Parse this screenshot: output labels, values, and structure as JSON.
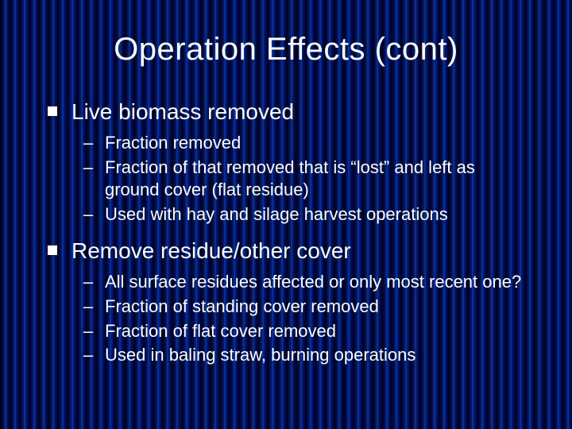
{
  "slide": {
    "title": "Operation Effects (cont)",
    "title_fontsize": 40,
    "title_color": "#ffffff",
    "body_color": "#ffffff",
    "background_stripe_colors": [
      "#000020",
      "#000840",
      "#001860",
      "#0030a0"
    ],
    "bullets": [
      {
        "text": "Live biomass removed",
        "subs": [
          "Fraction removed",
          "Fraction of that removed that is “lost” and left as ground cover (flat residue)",
          "Used with hay and silage harvest operations"
        ]
      },
      {
        "text": "Remove residue/other cover",
        "subs": [
          "All surface residues affected or only most recent one?",
          "Fraction of standing cover removed",
          "Fraction of flat cover removed",
          "Used in baling straw, burning operations"
        ]
      }
    ],
    "top_fontsize": 28,
    "sub_fontsize": 22,
    "top_bullet_shape": "square",
    "sub_bullet_glyph": "–"
  }
}
